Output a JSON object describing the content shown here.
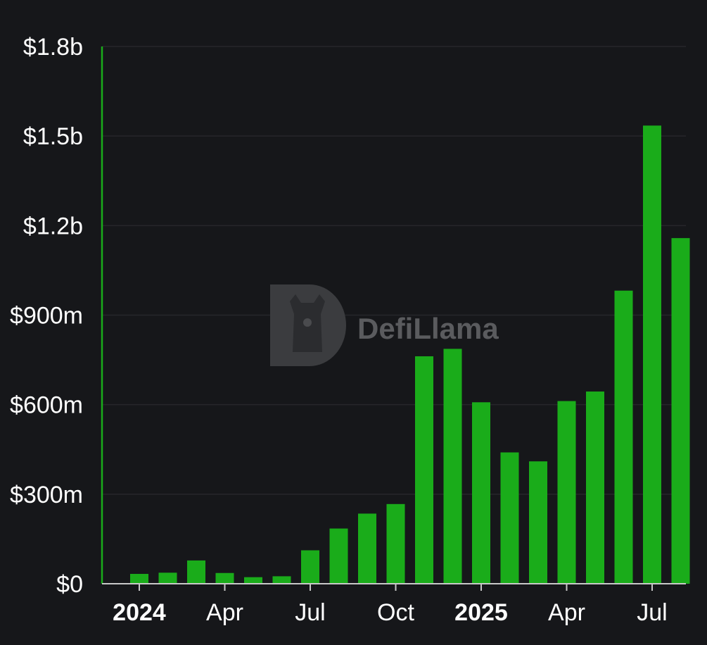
{
  "chart_data": {
    "type": "bar",
    "title": "",
    "xlabel": "",
    "ylabel": "",
    "ylim": [
      0,
      1800000000
    ],
    "y_ticks": [
      {
        "value": 0,
        "label": "$0"
      },
      {
        "value": 300000000,
        "label": "$300m"
      },
      {
        "value": 600000000,
        "label": "$600m"
      },
      {
        "value": 900000000,
        "label": "$900m"
      },
      {
        "value": 1200000000,
        "label": "$1.2b"
      },
      {
        "value": 1500000000,
        "label": "$1.5b"
      },
      {
        "value": 1800000000,
        "label": "$1.8b"
      }
    ],
    "x_ticks": [
      {
        "label": "2024",
        "bold": true,
        "index": 0
      },
      {
        "label": "Apr",
        "bold": false,
        "index": 3
      },
      {
        "label": "Jul",
        "bold": false,
        "index": 6
      },
      {
        "label": "Oct",
        "bold": false,
        "index": 9
      },
      {
        "label": "2025",
        "bold": true,
        "index": 12
      },
      {
        "label": "Apr",
        "bold": false,
        "index": 15
      },
      {
        "label": "Jul",
        "bold": false,
        "index": 18
      }
    ],
    "categories": [
      "2024-01",
      "2024-02",
      "2024-03",
      "2024-04",
      "2024-05",
      "2024-06",
      "2024-07",
      "2024-08",
      "2024-09",
      "2024-10",
      "2024-11",
      "2024-12",
      "2025-01",
      "2025-02",
      "2025-03",
      "2025-04",
      "2025-05",
      "2025-06",
      "2025-07",
      "2025-08"
    ],
    "values": [
      33000000,
      37000000,
      78000000,
      36000000,
      22000000,
      25000000,
      112000000,
      185000000,
      235000000,
      267000000,
      762000000,
      787000000,
      608000000,
      440000000,
      410000000,
      612000000,
      644000000,
      982000000,
      1535000000,
      1158000000
    ],
    "bar_color": "#1aac1a",
    "grid": true,
    "legend": "none"
  },
  "watermark": {
    "text": "DefiLlama",
    "icon": "llama-logo-icon"
  }
}
